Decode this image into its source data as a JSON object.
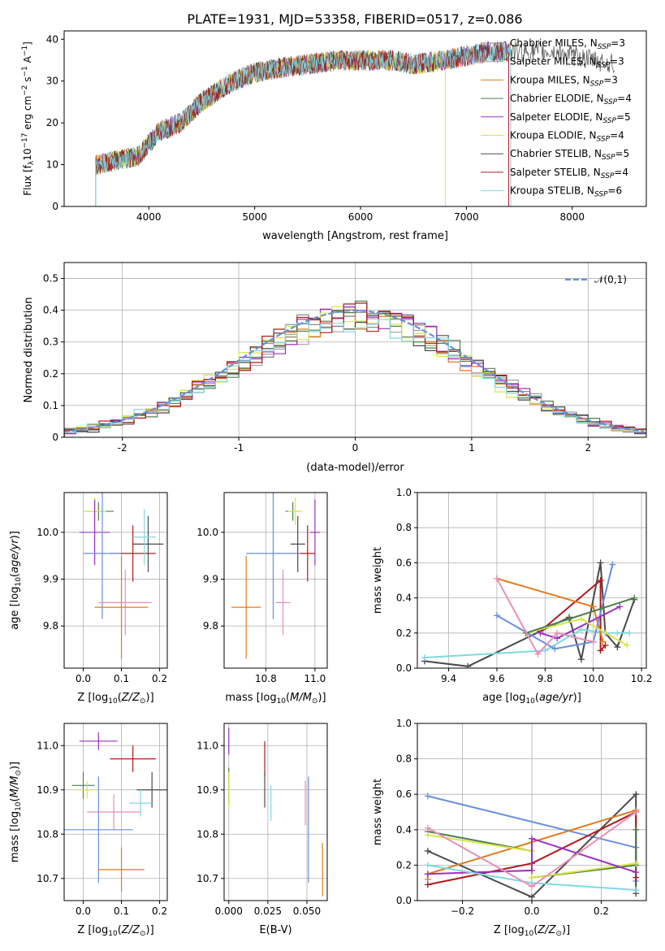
{
  "figure": {
    "title": "PLATE=1931, MJD=53358, FIBERID=0517, z=0.086"
  },
  "colors": {
    "Chabrier MILES": "#808080",
    "Salpeter MILES": "#a0a0a0",
    "Kroupa MILES": "#e07b1c",
    "Chabrier ELODIE": "#4f7f4f",
    "Salpeter ELODIE": "#9b30c0",
    "Kroupa ELODIE": "#d8e64a",
    "Chabrier STELIB": "#4a4a4a",
    "Salpeter STELIB": "#b01a1a",
    "Kroupa STELIB": "#7fd8e0",
    "blue": "#6a8fdc",
    "pink": "#e88fb8",
    "gaussian": "#6a8fdc"
  },
  "chart_data": [
    {
      "id": "spectrum",
      "type": "line",
      "xlabel": "wavelength [Angstrom, rest frame]",
      "ylabel": "Flux [f_λ10^-17 erg cm^-2 s^-1 A^-1]",
      "xlim": [
        3200,
        8700
      ],
      "ylim": [
        0,
        42
      ],
      "xticks": [
        4000,
        5000,
        6000,
        7000,
        8000
      ],
      "yticks": [
        0,
        10,
        20,
        30,
        40
      ],
      "grid": false,
      "legend_position": "top-right",
      "legend": [
        {
          "label": "Chabrier MILES, N",
          "sub": "SSP",
          "suffix": "=3"
        },
        {
          "label": "Salpeter MILES, N",
          "sub": "SSP",
          "suffix": "=3"
        },
        {
          "label": "Kroupa MILES, N",
          "sub": "SSP",
          "suffix": "=3"
        },
        {
          "label": "Chabrier ELODIE, N",
          "sub": "SSP",
          "suffix": "=4"
        },
        {
          "label": "Salpeter ELODIE, N",
          "sub": "SSP",
          "suffix": "=5"
        },
        {
          "label": "Kroupa ELODIE, N",
          "sub": "SSP",
          "suffix": "=4"
        },
        {
          "label": "Chabrier STELIB, N",
          "sub": "SSP",
          "suffix": "=5"
        },
        {
          "label": "Salpeter STELIB, N",
          "sub": "SSP",
          "suffix": "=4"
        },
        {
          "label": "Kroupa STELIB, N",
          "sub": "SSP",
          "suffix": "=6"
        }
      ],
      "continuum_anchors": [
        [
          3500,
          10
        ],
        [
          3900,
          12
        ],
        [
          4100,
          18
        ],
        [
          4300,
          20
        ],
        [
          4500,
          25
        ],
        [
          4800,
          30
        ],
        [
          5000,
          32
        ],
        [
          5200,
          33
        ],
        [
          5500,
          34
        ],
        [
          5800,
          35
        ],
        [
          6000,
          35
        ],
        [
          6300,
          35
        ],
        [
          6500,
          34
        ],
        [
          6800,
          35
        ],
        [
          7000,
          36
        ],
        [
          7200,
          37
        ],
        [
          7400,
          37
        ],
        [
          7600,
          37
        ],
        [
          7800,
          37
        ],
        [
          8000,
          36
        ],
        [
          8200,
          35
        ],
        [
          8400,
          34
        ]
      ],
      "model_ranges": [
        [
          3500,
          7400
        ],
        [
          3500,
          6800
        ],
        [
          3500,
          7420
        ],
        [
          3500,
          7400
        ],
        [
          3500,
          7400
        ],
        [
          3500,
          6800
        ],
        [
          3500,
          8400
        ],
        [
          3500,
          7400
        ],
        [
          3500,
          7420
        ]
      ]
    },
    {
      "id": "residuals",
      "type": "histogram",
      "xlabel": "(data-model)/error",
      "ylabel": "Normed distribution",
      "xlim": [
        -2.5,
        2.5
      ],
      "ylim": [
        0,
        0.55
      ],
      "xticks": [
        -2,
        -1,
        0,
        1,
        2
      ],
      "yticks": [
        0.0,
        0.1,
        0.2,
        0.3,
        0.4,
        0.5
      ],
      "grid": true,
      "legend_position": "top-right",
      "legend_label": "𝒩(0,1)",
      "bin_width": 0.1,
      "base_histogram": [
        0.02,
        0.025,
        0.03,
        0.03,
        0.03,
        0.04,
        0.05,
        0.06,
        0.07,
        0.08,
        0.09,
        0.1,
        0.12,
        0.14,
        0.16,
        0.18,
        0.2,
        0.22,
        0.24,
        0.26,
        0.28,
        0.3,
        0.33,
        0.36,
        0.38,
        0.4,
        0.42,
        0.44,
        0.46,
        0.45,
        0.44,
        0.44,
        0.43,
        0.42,
        0.41,
        0.4,
        0.38,
        0.36,
        0.34,
        0.31,
        0.28,
        0.25,
        0.22,
        0.2,
        0.18,
        0.15,
        0.12,
        0.1,
        0.08,
        0.07,
        0.06,
        0.055,
        0.05,
        0.045,
        0.04,
        0.035,
        0.03,
        0.025,
        0.02,
        0.02,
        0.02,
        0.02,
        0.015,
        0.015,
        0.015,
        0.01,
        0.01,
        0.01,
        0.01,
        0.01,
        0.01,
        0.01,
        0.01,
        0.01,
        0.01,
        0.01,
        0.01,
        0.01,
        0.01,
        0.01,
        0.01,
        0.01,
        0.01,
        0.01,
        0.01,
        0.01,
        0.01,
        0.01,
        0.01,
        0.01,
        0.01,
        0.01,
        0.01,
        0.01,
        0.01,
        0.01,
        0.01,
        0.01,
        0.01,
        0.01
      ],
      "series_offsets": [
        0.0,
        0.02,
        -0.01,
        0.03,
        0.01,
        -0.02,
        0.02,
        0.0,
        -0.01
      ]
    },
    {
      "id": "age-vs-Z",
      "type": "scatter",
      "xlabel": "Z [log10(Z/Z⊙)]",
      "ylabel": "age [log10(age/yr)]",
      "xlim": [
        -0.05,
        0.22
      ],
      "ylim": [
        9.71,
        10.085
      ],
      "xticks": [
        0.0,
        0.1,
        0.2
      ],
      "xtick_labels": [
        "0.0",
        "0.1",
        "0.2"
      ],
      "yticks": [
        9.8,
        9.9,
        10.0
      ],
      "yticklabels": [
        "9.8",
        "9.9",
        "10.0"
      ],
      "grid": true,
      "points": [
        {
          "x": 0.04,
          "y": 10.045,
          "xerr": 0.04,
          "yerr": 0.02,
          "color": "#4f7f4f"
        },
        {
          "x": 0.03,
          "y": 10.045,
          "xerr": 0.03,
          "yerr": 0.03,
          "color": "#d8e64a"
        },
        {
          "x": 0.03,
          "y": 10.0,
          "xerr": 0.04,
          "yerr": 0.07,
          "color": "#9b30c0"
        },
        {
          "x": 0.13,
          "y": 9.955,
          "xerr": 0.06,
          "yerr": 0.06,
          "color": "#b01a1a"
        },
        {
          "x": 0.05,
          "y": 9.955,
          "xerr": 0.05,
          "yerr": 0.14,
          "color": "#6a8fdc"
        },
        {
          "x": 0.17,
          "y": 9.975,
          "xerr": 0.04,
          "yerr": 0.06,
          "color": "#4a4a4a"
        },
        {
          "x": 0.16,
          "y": 9.99,
          "xerr": 0.03,
          "yerr": 0.06,
          "color": "#7fd8e0"
        },
        {
          "x": 0.11,
          "y": 9.85,
          "xerr": 0.07,
          "yerr": 0.07,
          "color": "#e88fb8"
        },
        {
          "x": 0.1,
          "y": 9.84,
          "xerr": 0.07,
          "yerr": 0.11,
          "color": "#e07b1c"
        }
      ]
    },
    {
      "id": "age-vs-mass",
      "type": "scatter",
      "xlabel": "mass [log10(M/M⊙)]",
      "ylabel": "",
      "xlim": [
        10.63,
        11.05
      ],
      "ylim": [
        9.71,
        10.085
      ],
      "xticks": [
        10.8,
        11.0
      ],
      "xtick_labels": [
        "10.8",
        "11.0"
      ],
      "yticks": [
        9.8,
        9.9,
        10.0
      ],
      "yticklabels": [
        "9.8",
        "9.9",
        "10.0"
      ],
      "grid": true,
      "points": [
        {
          "x": 10.91,
          "y": 10.045,
          "xerr": 0.03,
          "yerr": 0.02,
          "color": "#4f7f4f"
        },
        {
          "x": 10.92,
          "y": 10.045,
          "xerr": 0.03,
          "yerr": 0.03,
          "color": "#d8e64a"
        },
        {
          "x": 11.0,
          "y": 10.0,
          "xerr": 0.02,
          "yerr": 0.07,
          "color": "#9b30c0"
        },
        {
          "x": 10.97,
          "y": 9.955,
          "xerr": 0.03,
          "yerr": 0.06,
          "color": "#b01a1a"
        },
        {
          "x": 10.83,
          "y": 9.955,
          "xerr": 0.11,
          "yerr": 0.14,
          "color": "#6a8fdc"
        },
        {
          "x": 10.93,
          "y": 9.975,
          "xerr": 0.03,
          "yerr": 0.06,
          "color": "#4a4a4a"
        },
        {
          "x": 10.87,
          "y": 9.85,
          "xerr": 0.03,
          "yerr": 0.07,
          "color": "#e88fb8"
        },
        {
          "x": 10.72,
          "y": 9.84,
          "xerr": 0.06,
          "yerr": 0.11,
          "color": "#e07b1c"
        }
      ]
    },
    {
      "id": "mass-weight-vs-age",
      "type": "line",
      "xlabel": "age [log10(age/yr)]",
      "ylabel": "mass weight",
      "xlim": [
        9.27,
        10.22
      ],
      "ylim": [
        0.0,
        1.0
      ],
      "xticks": [
        9.4,
        9.6,
        9.8,
        10.0,
        10.2
      ],
      "xtick_labels": [
        "9.4",
        "9.6",
        "9.8",
        "10.0",
        "10.2"
      ],
      "yticks": [
        0.0,
        0.2,
        0.4,
        0.6,
        0.8,
        1.0
      ],
      "yticklabels": [
        "0.0",
        "0.2",
        "0.4",
        "0.6",
        "0.8",
        "1.0"
      ],
      "grid": true,
      "series": [
        {
          "name": "Chabrier STELIB",
          "color": "#4a4a4a",
          "x": [
            9.3,
            9.48,
            9.9,
            9.95,
            10.03,
            10.05,
            10.1,
            10.17
          ],
          "y": [
            0.04,
            0.01,
            0.29,
            0.05,
            0.6,
            0.2,
            0.12,
            0.39
          ]
        },
        {
          "name": "Kroupa STELIB",
          "color": "#7fd8e0",
          "x": [
            9.3,
            9.8,
            9.95,
            10.05,
            10.1,
            10.15
          ],
          "y": [
            0.06,
            0.1,
            0.22,
            0.2,
            0.2,
            0.2
          ]
        },
        {
          "name": "Salpeter STELIB",
          "color": "#b01a1a",
          "x": [
            9.78,
            10.03,
            10.03,
            10.05
          ],
          "y": [
            0.21,
            0.5,
            0.1,
            0.13
          ]
        },
        {
          "name": "Kroupa MILES",
          "color": "#e07b1c",
          "x": [
            9.6,
            10.0,
            10.04
          ],
          "y": [
            0.51,
            0.35,
            0.15
          ]
        },
        {
          "name": "Chabrier MILES",
          "color": "#6a8fdc",
          "x": [
            9.6,
            9.84,
            10.0,
            10.08
          ],
          "y": [
            0.3,
            0.11,
            0.15,
            0.59
          ]
        },
        {
          "name": "Salpeter ELODIE",
          "color": "#9b30c0",
          "x": [
            9.78,
            9.85,
            10.11
          ],
          "y": [
            0.2,
            0.17,
            0.35
          ]
        },
        {
          "name": "Kroupa ELODIE",
          "color": "#d8e64a",
          "x": [
            9.72,
            9.95,
            10.14
          ],
          "y": [
            0.2,
            0.28,
            0.13
          ]
        },
        {
          "name": "Chabrier ELODIE",
          "color": "#4f7f4f",
          "x": [
            9.72,
            9.9,
            10.17
          ],
          "y": [
            0.2,
            0.28,
            0.4
          ]
        },
        {
          "name": "pink",
          "color": "#e88fb8",
          "x": [
            9.6,
            9.77,
            9.85,
            10.0
          ],
          "y": [
            0.51,
            0.08,
            0.2,
            0.15
          ]
        }
      ]
    },
    {
      "id": "mass-vs-Z",
      "type": "scatter",
      "xlabel": "Z [log10(Z/Z⊙)]",
      "ylabel": "mass [log10(M/M⊙)]",
      "xlim": [
        -0.05,
        0.22
      ],
      "ylim": [
        10.65,
        11.05
      ],
      "xticks": [
        0.0,
        0.1,
        0.2
      ],
      "xtick_labels": [
        "0.0",
        "0.1",
        "0.2"
      ],
      "yticks": [
        10.7,
        10.8,
        10.9,
        11.0
      ],
      "yticklabels": [
        "10.7",
        "10.8",
        "10.9",
        "11.0"
      ],
      "grid": true,
      "points": [
        {
          "x": 0.04,
          "y": 11.01,
          "xerr": 0.05,
          "yerr": 0.02,
          "color": "#9b30c0"
        },
        {
          "x": 0.13,
          "y": 10.97,
          "xerr": 0.06,
          "yerr": 0.03,
          "color": "#b01a1a"
        },
        {
          "x": 0.0,
          "y": 10.91,
          "xerr": 0.03,
          "yerr": 0.03,
          "color": "#4f7f4f"
        },
        {
          "x": 0.01,
          "y": 10.9,
          "xerr": 0.03,
          "yerr": 0.02,
          "color": "#d8e64a"
        },
        {
          "x": 0.18,
          "y": 10.9,
          "xerr": 0.04,
          "yerr": 0.04,
          "color": "#4a4a4a"
        },
        {
          "x": 0.15,
          "y": 10.87,
          "xerr": 0.03,
          "yerr": 0.03,
          "color": "#7fd8e0"
        },
        {
          "x": 0.08,
          "y": 10.85,
          "xerr": 0.07,
          "yerr": 0.04,
          "color": "#e88fb8"
        },
        {
          "x": 0.04,
          "y": 10.81,
          "xerr": 0.09,
          "yerr": 0.12,
          "color": "#6a8fdc"
        },
        {
          "x": 0.1,
          "y": 10.72,
          "xerr": 0.06,
          "yerr": 0.05,
          "color": "#e07b1c"
        }
      ]
    },
    {
      "id": "mass-vs-EBV",
      "type": "scatter",
      "xlabel": "E(B-V)",
      "ylabel": "",
      "xlim": [
        -0.003,
        0.063
      ],
      "ylim": [
        10.65,
        11.05
      ],
      "xticks": [
        0.0,
        0.025,
        0.05
      ],
      "xtick_labels": [
        "0.000",
        "0.025",
        "0.050"
      ],
      "yticks": [
        10.7,
        10.8,
        10.9,
        11.0
      ],
      "yticklabels": [
        "10.7",
        "10.8",
        "10.9",
        "11.0"
      ],
      "grid": true,
      "points": [
        {
          "x": 0.0,
          "y": 11.01,
          "xerr": 0.0,
          "yerr": 0.03,
          "color": "#9b30c0"
        },
        {
          "x": 0.023,
          "y": 10.97,
          "xerr": 0.0,
          "yerr": 0.04,
          "color": "#b01a1a"
        },
        {
          "x": 0.0,
          "y": 10.91,
          "xerr": 0.0,
          "yerr": 0.04,
          "color": "#4f7f4f"
        },
        {
          "x": 0.0,
          "y": 10.9,
          "xerr": 0.0,
          "yerr": 0.04,
          "color": "#d8e64a"
        },
        {
          "x": 0.023,
          "y": 10.9,
          "xerr": 0.0,
          "yerr": 0.04,
          "color": "#4a4a4a"
        },
        {
          "x": 0.027,
          "y": 10.87,
          "xerr": 0.0,
          "yerr": 0.04,
          "color": "#7fd8e0"
        },
        {
          "x": 0.049,
          "y": 10.87,
          "xerr": 0.0,
          "yerr": 0.05,
          "color": "#e88fb8"
        },
        {
          "x": 0.051,
          "y": 10.81,
          "xerr": 0.0,
          "yerr": 0.12,
          "color": "#6a8fdc"
        },
        {
          "x": 0.06,
          "y": 10.72,
          "xerr": 0.0,
          "yerr": 0.06,
          "color": "#e07b1c"
        }
      ]
    },
    {
      "id": "mass-weight-vs-Z",
      "type": "line",
      "xlabel": "Z [log10(Z/Z⊙)]",
      "ylabel": "mass weight",
      "xlim": [
        -0.33,
        0.33
      ],
      "ylim": [
        0.0,
        1.0
      ],
      "xticks": [
        -0.2,
        0.0,
        0.2
      ],
      "xtick_labels": [
        "−0.2",
        "0.0",
        "0.2"
      ],
      "yticks": [
        0.0,
        0.2,
        0.4,
        0.6,
        0.8,
        1.0
      ],
      "yticklabels": [
        "0.0",
        "0.2",
        "0.4",
        "0.6",
        "0.8",
        "1.0"
      ],
      "grid": true,
      "series": [
        {
          "name": "Chabrier MILES",
          "color": "#6a8fdc",
          "x": [
            -0.3,
            0.3,
            0.3
          ],
          "y": [
            0.59,
            0.3,
            0.11
          ]
        },
        {
          "name": "Chabrier STELIB",
          "color": "#4a4a4a",
          "x": [
            -0.3,
            0.0,
            0.3,
            0.3
          ],
          "y": [
            0.28,
            0.02,
            0.6,
            0.04
          ]
        },
        {
          "name": "Kroupa MILES",
          "color": "#e07b1c",
          "x": [
            -0.3,
            -0.3,
            0.3
          ],
          "y": [
            0.12,
            0.15,
            0.51
          ]
        },
        {
          "name": "Salpeter STELIB",
          "color": "#b01a1a",
          "x": [
            -0.3,
            0.0,
            0.3,
            0.3
          ],
          "y": [
            0.09,
            0.21,
            0.5,
            0.13
          ]
        },
        {
          "name": "Chabrier ELODIE",
          "color": "#4f7f4f",
          "x": [
            -0.3,
            0.0,
            0.0,
            0.3,
            0.3
          ],
          "y": [
            0.39,
            0.28,
            0.13,
            0.2,
            0.4
          ]
        },
        {
          "name": "Kroupa ELODIE",
          "color": "#d8e64a",
          "x": [
            -0.3,
            0.0,
            0.0,
            0.3
          ],
          "y": [
            0.37,
            0.28,
            0.13,
            0.21
          ]
        },
        {
          "name": "Salpeter ELODIE",
          "color": "#9b30c0",
          "x": [
            -0.3,
            0.0,
            0.0,
            0.3
          ],
          "y": [
            0.15,
            0.17,
            0.35,
            0.16
          ]
        },
        {
          "name": "Kroupa STELIB",
          "color": "#7fd8e0",
          "x": [
            -0.3,
            0.0,
            0.3
          ],
          "y": [
            0.2,
            0.1,
            0.06
          ]
        },
        {
          "name": "pink",
          "color": "#e88fb8",
          "x": [
            -0.3,
            0.0,
            0.3
          ],
          "y": [
            0.41,
            0.08,
            0.5
          ]
        }
      ]
    }
  ]
}
